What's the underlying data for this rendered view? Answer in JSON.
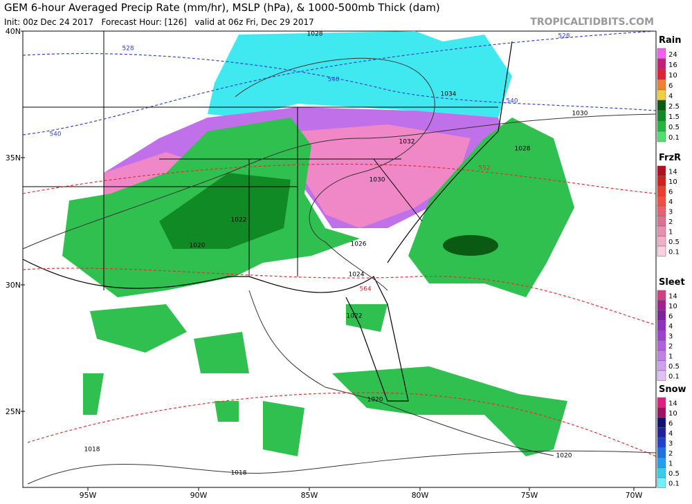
{
  "header": {
    "title": "GEM 6-hour Averaged Precip Rate (mm/hr), MSLP (hPa), & 1000-500mb Thick (dam)",
    "subtitle": "Init: 00z Dec 24 2017   Forecast Hour: [126]   valid at 06z Fri, Dec 29 2017",
    "site": "TROPICALTIDBITS.COM"
  },
  "map": {
    "lat_labels": [
      "40N",
      "35N",
      "30N",
      "25N"
    ],
    "lon_labels": [
      "95W",
      "90W",
      "85W",
      "80W",
      "75W",
      "70W"
    ],
    "isobar_labels": [
      "1028",
      "1034",
      "1030",
      "1032",
      "1028",
      "1030",
      "1022",
      "1020",
      "1026",
      "1024",
      "1022",
      "1020",
      "1018",
      "1018",
      "1020"
    ],
    "thickness_labels": [
      "528",
      "528",
      "540",
      "540",
      "540",
      "552",
      "564"
    ]
  },
  "legend": [
    {
      "title": "Rain",
      "labels": [
        "24",
        "16",
        "10",
        "6",
        "4",
        "2.5",
        "1.5",
        "0.5",
        "0.1"
      ],
      "colors": [
        "#f060f0",
        "#c0207a",
        "#e0203a",
        "#f08030",
        "#f0d040",
        "#0a5a14",
        "#108a24",
        "#20b83c",
        "#50e070"
      ]
    },
    {
      "title": "FrzR",
      "labels": [
        "14",
        "10",
        "6",
        "4",
        "3",
        "2",
        "1",
        "0.5",
        "0.1"
      ],
      "colors": [
        "#b01020",
        "#d02020",
        "#e84030",
        "#f05040",
        "#e86070",
        "#e07090",
        "#e890b0",
        "#f0b0c8",
        "#f8d0e0"
      ]
    },
    {
      "title": "Sleet",
      "labels": [
        "14",
        "10",
        "6",
        "4",
        "3",
        "2",
        "1",
        "0.5",
        "0.1"
      ],
      "colors": [
        "#d04080",
        "#a02090",
        "#8020a0",
        "#9030c0",
        "#a040d0",
        "#b060e0",
        "#c080e8",
        "#d0a0f0",
        "#e0c0f8"
      ]
    },
    {
      "title": "Snow",
      "labels": [
        "14",
        "10",
        "6",
        "4",
        "3",
        "2",
        "1",
        "0.5",
        "0.1"
      ],
      "colors": [
        "#e02080",
        "#a01060",
        "#101070",
        "#2020a0",
        "#2040d0",
        "#2070e0",
        "#20a0f0",
        "#30d0f0",
        "#70f0f8"
      ]
    }
  ]
}
